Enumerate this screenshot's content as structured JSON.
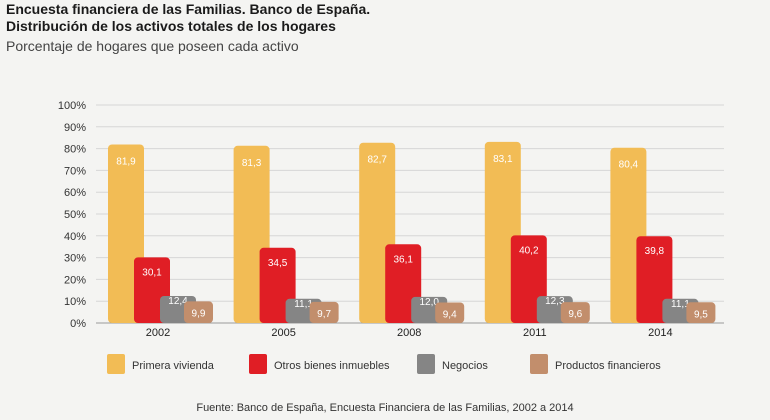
{
  "header": {
    "title_line1": "Encuesta financiera de las Familias. Banco de España.",
    "title_line2": "Distribución de los activos totales de los hogares",
    "subtitle": "Porcentaje de hogares que poseen cada activo"
  },
  "footer": {
    "source": "Fuente: Banco de España, Encuesta Financiera de las Familias, 2002 a 2014"
  },
  "chart_data": {
    "type": "bar",
    "title": "Encuesta financiera de las Familias. Banco de España. Distribución de los activos totales de los hogares",
    "subtitle": "Porcentaje de hogares que poseen cada activo",
    "categories": [
      "2002",
      "2005",
      "2008",
      "2011",
      "2014"
    ],
    "series": [
      {
        "name": "Primera vivienda",
        "color": "#f2bc55",
        "values": [
          81.9,
          81.3,
          82.7,
          83.1,
          80.4
        ],
        "labels": [
          "81,9",
          "81,3",
          "82,7",
          "83,1",
          "80,4"
        ]
      },
      {
        "name": "Otros bienes inmuebles",
        "color": "#e01e25",
        "values": [
          30.1,
          34.5,
          36.1,
          40.2,
          39.8
        ],
        "labels": [
          "30,1",
          "34,5",
          "36,1",
          "40,2",
          "39,8"
        ]
      },
      {
        "name": "Negocios",
        "color": "#858585",
        "values": [
          12.4,
          11.1,
          12.0,
          12.3,
          11.1
        ],
        "labels": [
          "12,4",
          "11,1",
          "12,0",
          "12,3",
          "11,1"
        ]
      },
      {
        "name": "Productos financieros",
        "color": "#c28e6c",
        "values": [
          9.9,
          9.7,
          9.4,
          9.6,
          9.5
        ],
        "labels": [
          "9,9",
          "9,7",
          "9,4",
          "9,6",
          "9,5"
        ]
      }
    ],
    "ylim": [
      0,
      100
    ],
    "yticks": [
      "0%",
      "10%",
      "20%",
      "30%",
      "40%",
      "50%",
      "60%",
      "70%",
      "80%",
      "90%",
      "100%"
    ],
    "grid": true,
    "legend_position": "bottom"
  }
}
